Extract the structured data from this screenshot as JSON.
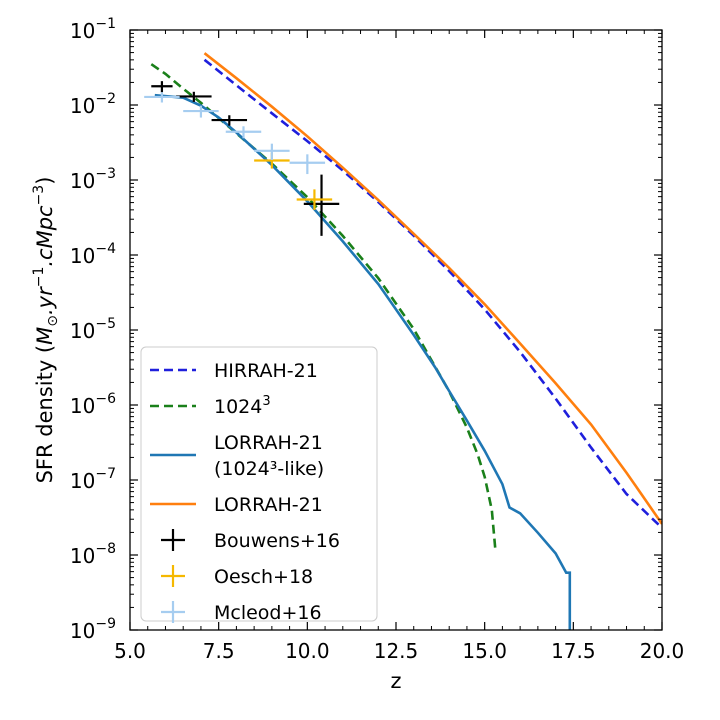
{
  "chart_data": {
    "type": "line",
    "xlabel": "z",
    "ylabel": "SFR density (M⊙.yr⁻¹.cMpc⁻³)",
    "xlim": [
      5.0,
      20.0
    ],
    "ylim": [
      1e-09,
      0.1
    ],
    "yscale": "log",
    "grid": false,
    "legend_position": "lower-left",
    "x_ticks": [
      5.0,
      7.5,
      10.0,
      12.5,
      15.0,
      17.5,
      20.0
    ],
    "x_tick_labels": [
      "5.0",
      "7.5",
      "10.0",
      "12.5",
      "15.0",
      "17.5",
      "20.0"
    ],
    "y_ticks": [
      -9,
      -8,
      -7,
      -6,
      -5,
      -4,
      -3,
      -2,
      -1
    ],
    "colors": {
      "hirrah": "#1f1fdc",
      "n1024": "#1a801a",
      "lorrah_like": "#1f77b4",
      "lorrah": "#ff7f0e",
      "bouwens": "#000000",
      "oesch": "#f5b800",
      "mcleod": "#a6cdf0"
    },
    "series": [
      {
        "name": "HIRRAH-21",
        "style": "dashed",
        "color_key": "hirrah",
        "x": [
          7.1,
          8.0,
          9.0,
          10.0,
          11.0,
          12.0,
          13.0,
          14.0,
          15.0,
          16.0,
          17.0,
          18.0,
          19.0,
          20.0
        ],
        "y": [
          0.04,
          0.0183,
          0.00775,
          0.0033,
          0.00134,
          0.000508,
          0.000181,
          6.1e-05,
          1.88e-05,
          5.1e-06,
          1.22e-06,
          2.7e-07,
          6.5e-08,
          2.3e-08
        ]
      },
      {
        "name": "1024",
        "name_sup": "3",
        "style": "dashed",
        "color_key": "n1024",
        "x": [
          5.6,
          6.0,
          6.5,
          7.0,
          7.5,
          8.0,
          9.0,
          10.0,
          11.0,
          12.0,
          13.0,
          14.0,
          14.5,
          14.8,
          15.0,
          15.2,
          15.3
        ],
        "y": [
          0.035,
          0.026,
          0.0165,
          0.0107,
          0.0067,
          0.0042,
          0.00165,
          0.00059,
          0.00018,
          4.9e-05,
          1.03e-05,
          1.52e-06,
          5e-07,
          2.2e-07,
          1.1e-07,
          4e-08,
          1.2e-08
        ]
      },
      {
        "name": "LORRAH-21",
        "name_line2": "(1024³-like)",
        "style": "solid",
        "color_key": "lorrah_like",
        "x": [
          5.7,
          6.5,
          7.0,
          7.5,
          8.0,
          9.0,
          10.0,
          11.0,
          12.0,
          13.0,
          13.6,
          14.0,
          14.5,
          15.0,
          15.5,
          15.7,
          16.0,
          16.5,
          17.0,
          17.3,
          17.4,
          17.4
        ],
        "y": [
          0.0135,
          0.0125,
          0.0098,
          0.0068,
          0.0043,
          0.00158,
          0.00052,
          0.000152,
          4.1e-05,
          8.6e-06,
          3.2e-06,
          1.53e-06,
          6.2e-07,
          2.45e-07,
          8.8e-08,
          4.3e-08,
          3.6e-08,
          1.98e-08,
          1.05e-08,
          5.8e-09,
          5.8e-09,
          1e-09
        ]
      },
      {
        "name": "LORRAH-21",
        "style": "solid",
        "color_key": "lorrah",
        "x": [
          7.1,
          8.0,
          9.0,
          10.0,
          11.0,
          12.0,
          13.0,
          14.0,
          15.0,
          16.0,
          17.0,
          18.0,
          19.0,
          20.0
        ],
        "y": [
          0.049,
          0.0228,
          0.0095,
          0.00383,
          0.00146,
          0.00054,
          0.000192,
          6.7e-05,
          2.2e-05,
          6.6e-06,
          1.95e-06,
          5.5e-07,
          1.25e-07,
          2.6e-08
        ]
      }
    ],
    "observations": [
      {
        "name": "Bouwens+16",
        "color_key": "bouwens",
        "points": [
          {
            "x": 5.9,
            "xerr": [
              0.3,
              0.3
            ],
            "y": 0.0178,
            "yerr": [
              0.003,
              0.003
            ]
          },
          {
            "x": 6.8,
            "xerr": [
              0.5,
              0.5
            ],
            "y": 0.013,
            "yerr": [
              0.002,
              0.002
            ]
          },
          {
            "x": 7.8,
            "xerr": [
              0.5,
              0.5
            ],
            "y": 0.0063,
            "yerr": [
              0.001,
              0.001
            ]
          },
          {
            "x": 10.4,
            "xerr": [
              0.5,
              0.5
            ],
            "y": 0.00048,
            "yerr": [
              0.0003,
              0.0007
            ]
          }
        ]
      },
      {
        "name": "Oesch+18",
        "color_key": "oesch",
        "points": [
          {
            "x": 9.0,
            "xerr": [
              0.5,
              0.5
            ],
            "y": 0.00182,
            "yerr": [
              0.0004,
              0.0005
            ]
          },
          {
            "x": 10.2,
            "xerr": [
              0.5,
              0.5
            ],
            "y": 0.00055,
            "yerr": [
              0.00015,
              0.0002
            ]
          }
        ]
      },
      {
        "name": "Mcleod+16",
        "color_key": "mcleod",
        "points": [
          {
            "x": 5.9,
            "xerr": [
              0.5,
              0.5
            ],
            "y": 0.0128,
            "yerr": [
              0.002,
              0.002
            ]
          },
          {
            "x": 7.0,
            "xerr": [
              0.5,
              0.5
            ],
            "y": 0.0083,
            "yerr": [
              0.0015,
              0.0015
            ]
          },
          {
            "x": 8.2,
            "xerr": [
              0.5,
              0.5
            ],
            "y": 0.0044,
            "yerr": [
              0.0008,
              0.0008
            ]
          },
          {
            "x": 9.0,
            "xerr": [
              0.5,
              0.5
            ],
            "y": 0.00245,
            "yerr": [
              0.0006,
              0.0006
            ]
          },
          {
            "x": 10.0,
            "xerr": [
              0.5,
              0.5
            ],
            "y": 0.0017,
            "yerr": [
              0.0005,
              0.0005
            ]
          }
        ]
      }
    ]
  }
}
